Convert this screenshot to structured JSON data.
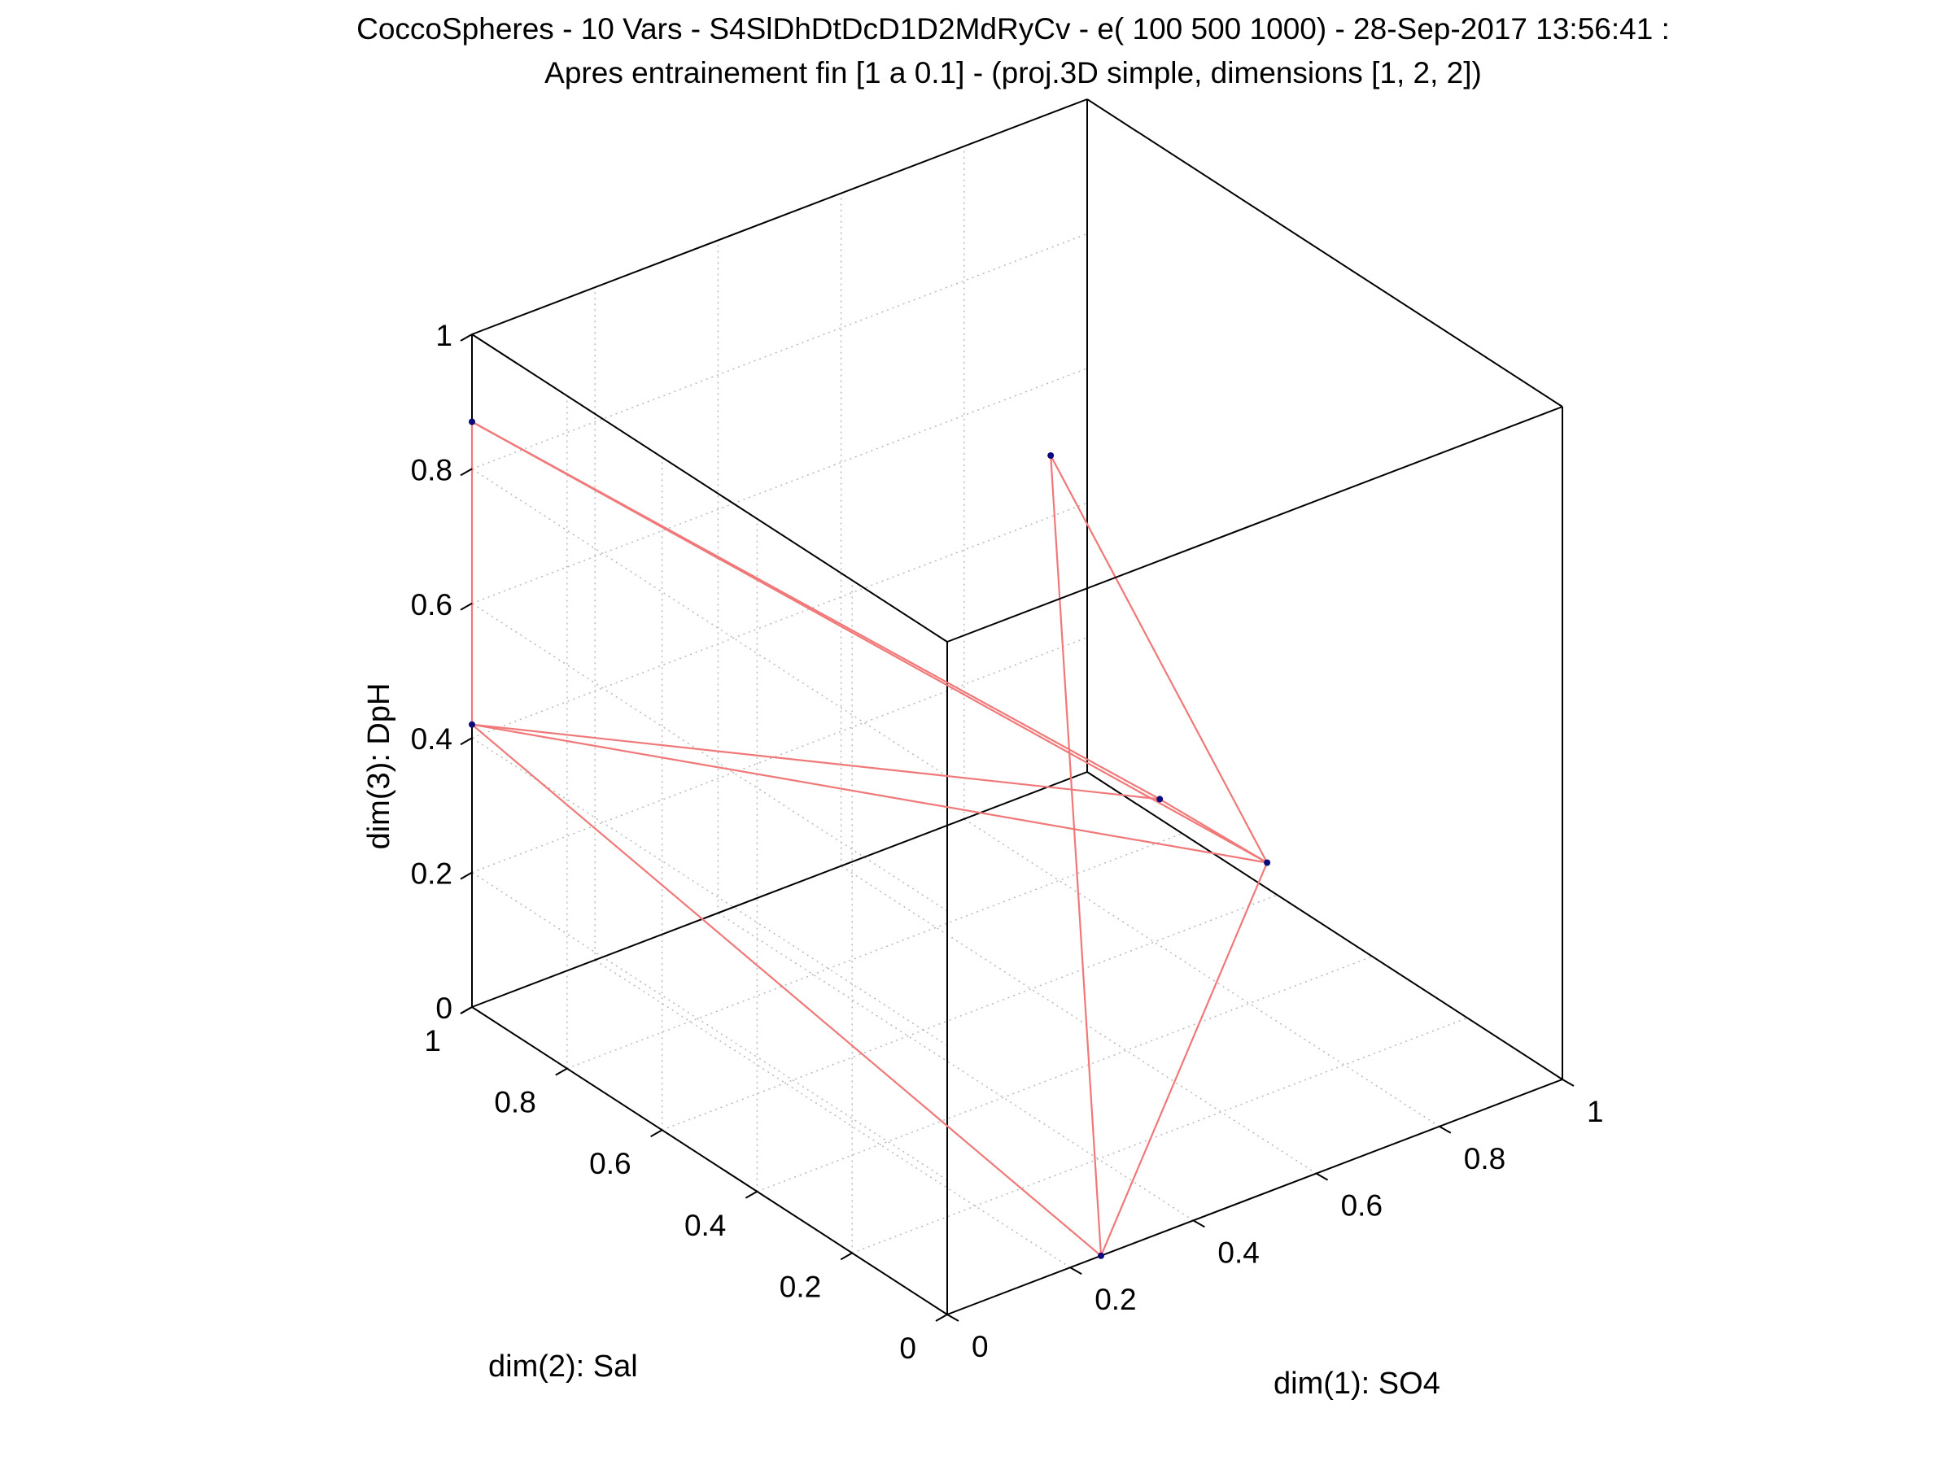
{
  "chart_data": {
    "type": "line3d",
    "title_lines": [
      "CoccoSpheres - 10 Vars - S4SlDhDtDcD1D2MdRyCv - e( 100 500 1000) - 28-Sep-2017 13:56:41 :",
      "Apres entrainement fin [1 a 0.1] - (proj.3D simple, dimensions [1, 2, 2])"
    ],
    "xlabel": "dim(1): SO4",
    "ylabel": "dim(2): Sal",
    "zlabel": "dim(3): DpH",
    "xlim": [
      0,
      1
    ],
    "ylim": [
      0,
      1
    ],
    "zlim": [
      0,
      1
    ],
    "x_ticks": [
      "0",
      "0.2",
      "0.4",
      "0.6",
      "0.8",
      "1"
    ],
    "y_ticks": [
      "0",
      "0.2",
      "0.4",
      "0.6",
      "0.8",
      "1"
    ],
    "z_ticks": [
      "0",
      "0.2",
      "0.4",
      "0.6",
      "0.8",
      "1"
    ],
    "grid": true,
    "series": [
      {
        "nodes": [
          {
            "x": 0.0,
            "y": 1.0,
            "z": 0.87
          },
          {
            "x": 0.0,
            "y": 1.0,
            "z": 0.42
          },
          {
            "x": 0.25,
            "y": 0.0,
            "z": 0.0
          },
          {
            "x": 0.4,
            "y": 0.3,
            "z": 1.0
          },
          {
            "x": 0.5,
            "y": 0.2,
            "z": 0.5
          },
          {
            "x": 0.52,
            "y": 0.0,
            "z": 0.49
          }
        ],
        "edges": [
          [
            0,
            1
          ],
          [
            0,
            4
          ],
          [
            0,
            5
          ],
          [
            1,
            4
          ],
          [
            1,
            5
          ],
          [
            1,
            2
          ],
          [
            2,
            5
          ],
          [
            2,
            3
          ],
          [
            3,
            5
          ],
          [
            4,
            5
          ]
        ],
        "color": "#f07878",
        "node_color": "#0a0a7a"
      }
    ]
  }
}
